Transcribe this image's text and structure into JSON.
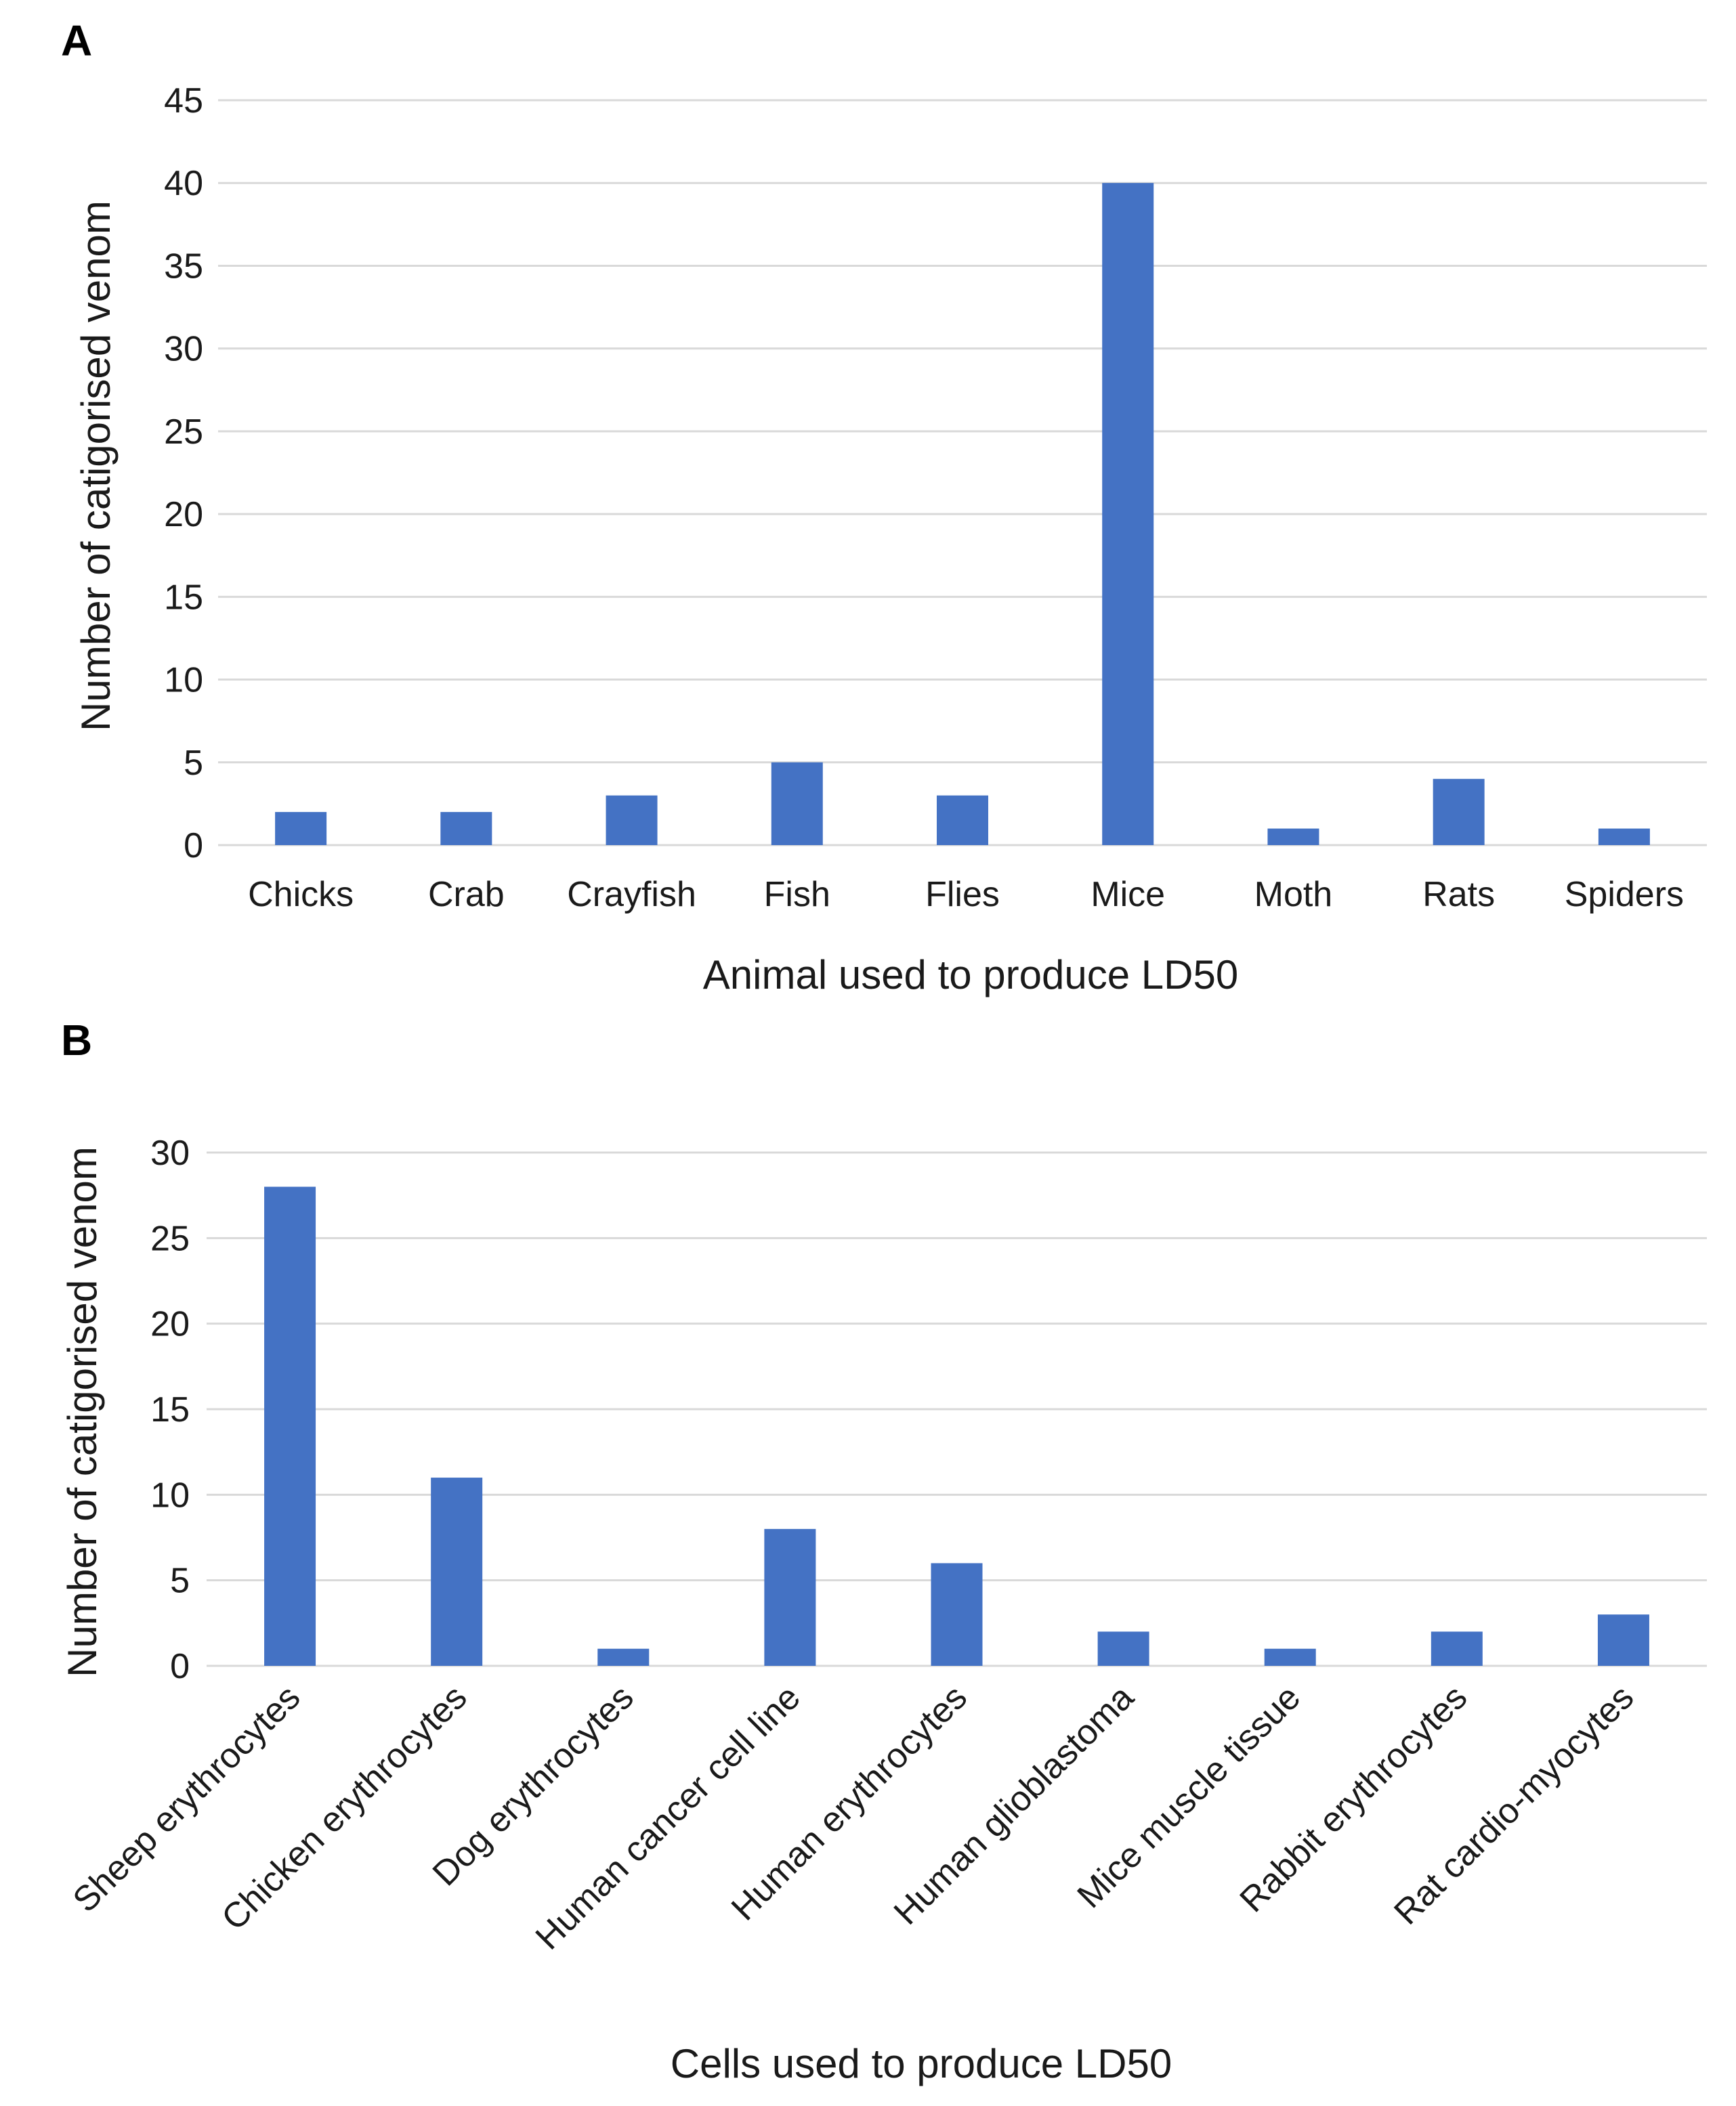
{
  "chart_data": [
    {
      "panel": "A",
      "type": "bar",
      "title": "",
      "xlabel": "Animal used to produce LD50",
      "ylabel": "Number of catigorised venom",
      "ylim": [
        0,
        45
      ],
      "yticks": [
        0,
        5,
        10,
        15,
        20,
        25,
        30,
        35,
        40,
        45
      ],
      "grid": true,
      "categories": [
        "Chicks",
        "Crab",
        "Crayfish",
        "Fish",
        "Flies",
        "Mice",
        "Moth",
        "Rats",
        "Spiders"
      ],
      "values": [
        2,
        2,
        3,
        5,
        3,
        40,
        1,
        4,
        1
      ],
      "color": "#4472c4"
    },
    {
      "panel": "B",
      "type": "bar",
      "title": "",
      "xlabel": "Cells used to produce LD50",
      "ylabel": "Number of catigorised venom",
      "ylim": [
        0,
        30
      ],
      "yticks": [
        0,
        5,
        10,
        15,
        20,
        25,
        30
      ],
      "grid": true,
      "categories": [
        "Sheep erythrocytes",
        "Chicken erythrocytes",
        "Dog erythrocytes",
        "Human cancer cell line",
        "Human erythrocytes",
        "Human glioblastoma",
        "Mice muscle tissue",
        "Rabbit erythrocytes",
        "Rat cardio-myocytes"
      ],
      "values": [
        28,
        11,
        1,
        8,
        6,
        2,
        1,
        2,
        3
      ],
      "color": "#4472c4"
    }
  ]
}
